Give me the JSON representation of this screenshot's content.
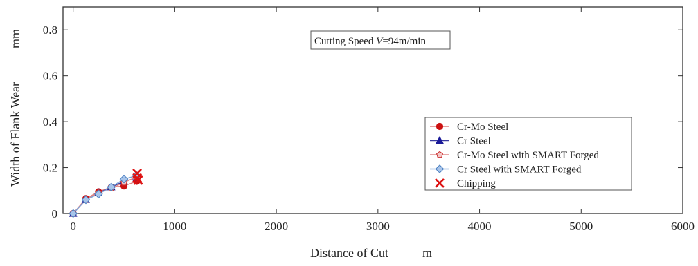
{
  "chart_data": {
    "type": "line",
    "xlabel": "Distance of Cut",
    "xunit": "m",
    "ylabel": "Width of Flank Wear",
    "yunit": "mm",
    "xlim": [
      -100,
      6000
    ],
    "ylim": [
      0,
      0.9
    ],
    "xticks": [
      0,
      1000,
      2000,
      3000,
      4000,
      5000,
      6000
    ],
    "yticks": [
      0,
      0.2,
      0.4,
      0.6,
      0.8
    ],
    "xtick_labels": [
      "0",
      "1000",
      "2000",
      "3000",
      "4000",
      "5000",
      "6000"
    ],
    "ytick_labels": [
      "0",
      "0.2",
      "0.4",
      "0.6",
      "0.8"
    ],
    "grid": false,
    "legend_position": "right",
    "annotation": {
      "prefix": "Cutting Speed ",
      "symbol": "V",
      "suffix": "=94m/min"
    },
    "series": [
      {
        "name": "Cr-Mo Steel",
        "marker": "circle",
        "color": "#cc1111",
        "line_color": "#e08080",
        "marker_fill": "#cc1111",
        "x": [
          0,
          125,
          250,
          375,
          500,
          625
        ],
        "y": [
          0.0,
          0.065,
          0.095,
          0.115,
          0.12,
          0.14
        ]
      },
      {
        "name": "Cr Steel",
        "marker": "triangle",
        "color": "#1a1a99",
        "line_color": "#3a3aa0",
        "marker_fill": "#1a1a99",
        "x": [
          0,
          125,
          250,
          375,
          500,
          625
        ],
        "y": [
          0.0,
          0.06,
          0.09,
          0.115,
          0.14,
          0.155
        ]
      },
      {
        "name": "Cr-Mo Steel with SMART Forged",
        "marker": "pentagon",
        "color": "#cc3333",
        "line_color": "#e08a8a",
        "marker_fill": "#f4c8c8",
        "x": [
          0,
          125,
          250,
          375,
          500,
          625
        ],
        "y": [
          0.0,
          0.06,
          0.09,
          0.11,
          0.135,
          0.16
        ]
      },
      {
        "name": "Cr Steel with SMART Forged",
        "marker": "diamond",
        "color": "#4a7fc0",
        "line_color": "#7aa3d8",
        "marker_fill": "#a8c4ea",
        "x": [
          0,
          125,
          250,
          375,
          500,
          625
        ],
        "y": [
          0.0,
          0.06,
          0.085,
          0.115,
          0.15,
          0.165
        ]
      }
    ],
    "chipping": {
      "name": "Chipping",
      "marker": "x",
      "color": "#dd1111",
      "x": [
        630,
        630,
        640
      ],
      "y": [
        0.175,
        0.155,
        0.145
      ]
    }
  }
}
